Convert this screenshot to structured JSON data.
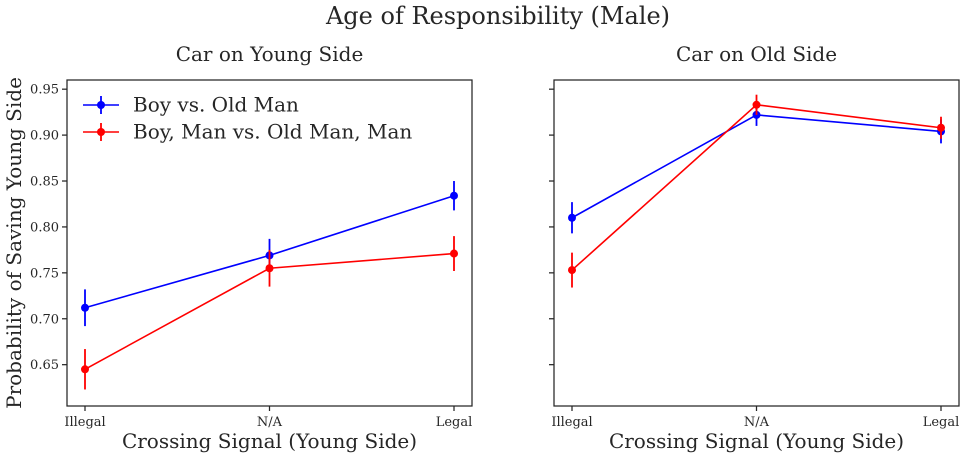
{
  "chart_data": {
    "type": "line",
    "title": "Age of Responsibility (Male)",
    "ylabel": "Probability of Saving Young Side",
    "xlabel": "Crossing Signal (Young Side)",
    "categories": [
      "Illegal",
      "N/A",
      "Legal"
    ],
    "ylim": [
      0.605,
      0.96
    ],
    "yticks": [
      0.65,
      0.7,
      0.75,
      0.8,
      0.85,
      0.9,
      0.95
    ],
    "ytick_labels": [
      "0.65",
      "0.70",
      "0.75",
      "0.80",
      "0.85",
      "0.90",
      "0.95"
    ],
    "legend": [
      "Boy vs. Old Man",
      "Boy, Man vs. Old Man, Man"
    ],
    "legend_position": "top-left",
    "grid": false,
    "panels": [
      {
        "subtitle": "Car on Young Side",
        "series": [
          {
            "name": "Boy vs. Old Man",
            "color": "#0000ff",
            "values": [
              0.712,
              0.769,
              0.834
            ],
            "errors": [
              0.02,
              0.018,
              0.016
            ]
          },
          {
            "name": "Boy, Man vs. Old Man, Man",
            "color": "#ff0000",
            "values": [
              0.645,
              0.755,
              0.771
            ],
            "errors": [
              0.022,
              0.02,
              0.019
            ]
          }
        ]
      },
      {
        "subtitle": "Car on Old Side",
        "series": [
          {
            "name": "Boy vs. Old Man",
            "color": "#0000ff",
            "values": [
              0.81,
              0.922,
              0.904
            ],
            "errors": [
              0.017,
              0.012,
              0.013
            ]
          },
          {
            "name": "Boy, Man vs. Old Man, Man",
            "color": "#ff0000",
            "values": [
              0.753,
              0.933,
              0.908
            ],
            "errors": [
              0.019,
              0.011,
              0.012
            ]
          }
        ]
      }
    ]
  }
}
